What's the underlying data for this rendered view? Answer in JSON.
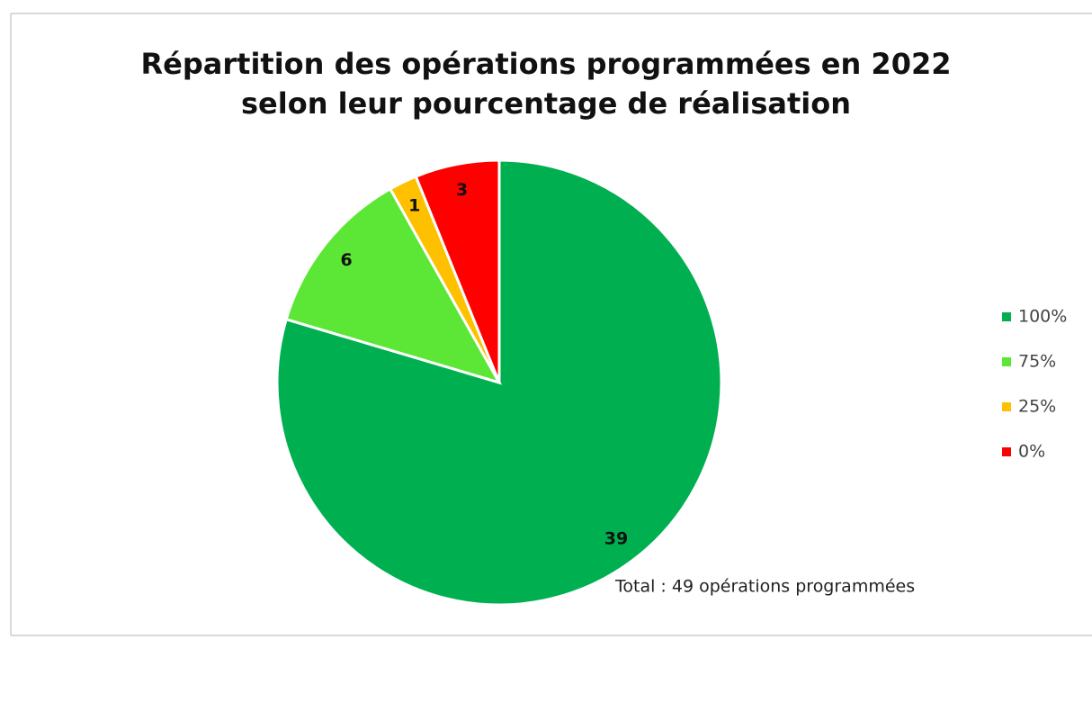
{
  "chart_data": {
    "type": "pie",
    "title": [
      "Répartition des opérations programmées en 2022",
      "selon leur pourcentage de réalisation"
    ],
    "categories": [
      "100%",
      "75%",
      "25%",
      "0%"
    ],
    "values": [
      39,
      6,
      1,
      3
    ],
    "colors": [
      "#00b050",
      "#5ce635",
      "#ffc000",
      "#ff0000"
    ],
    "annotation": "Total : 49 opérations programmées",
    "legend": "right"
  }
}
